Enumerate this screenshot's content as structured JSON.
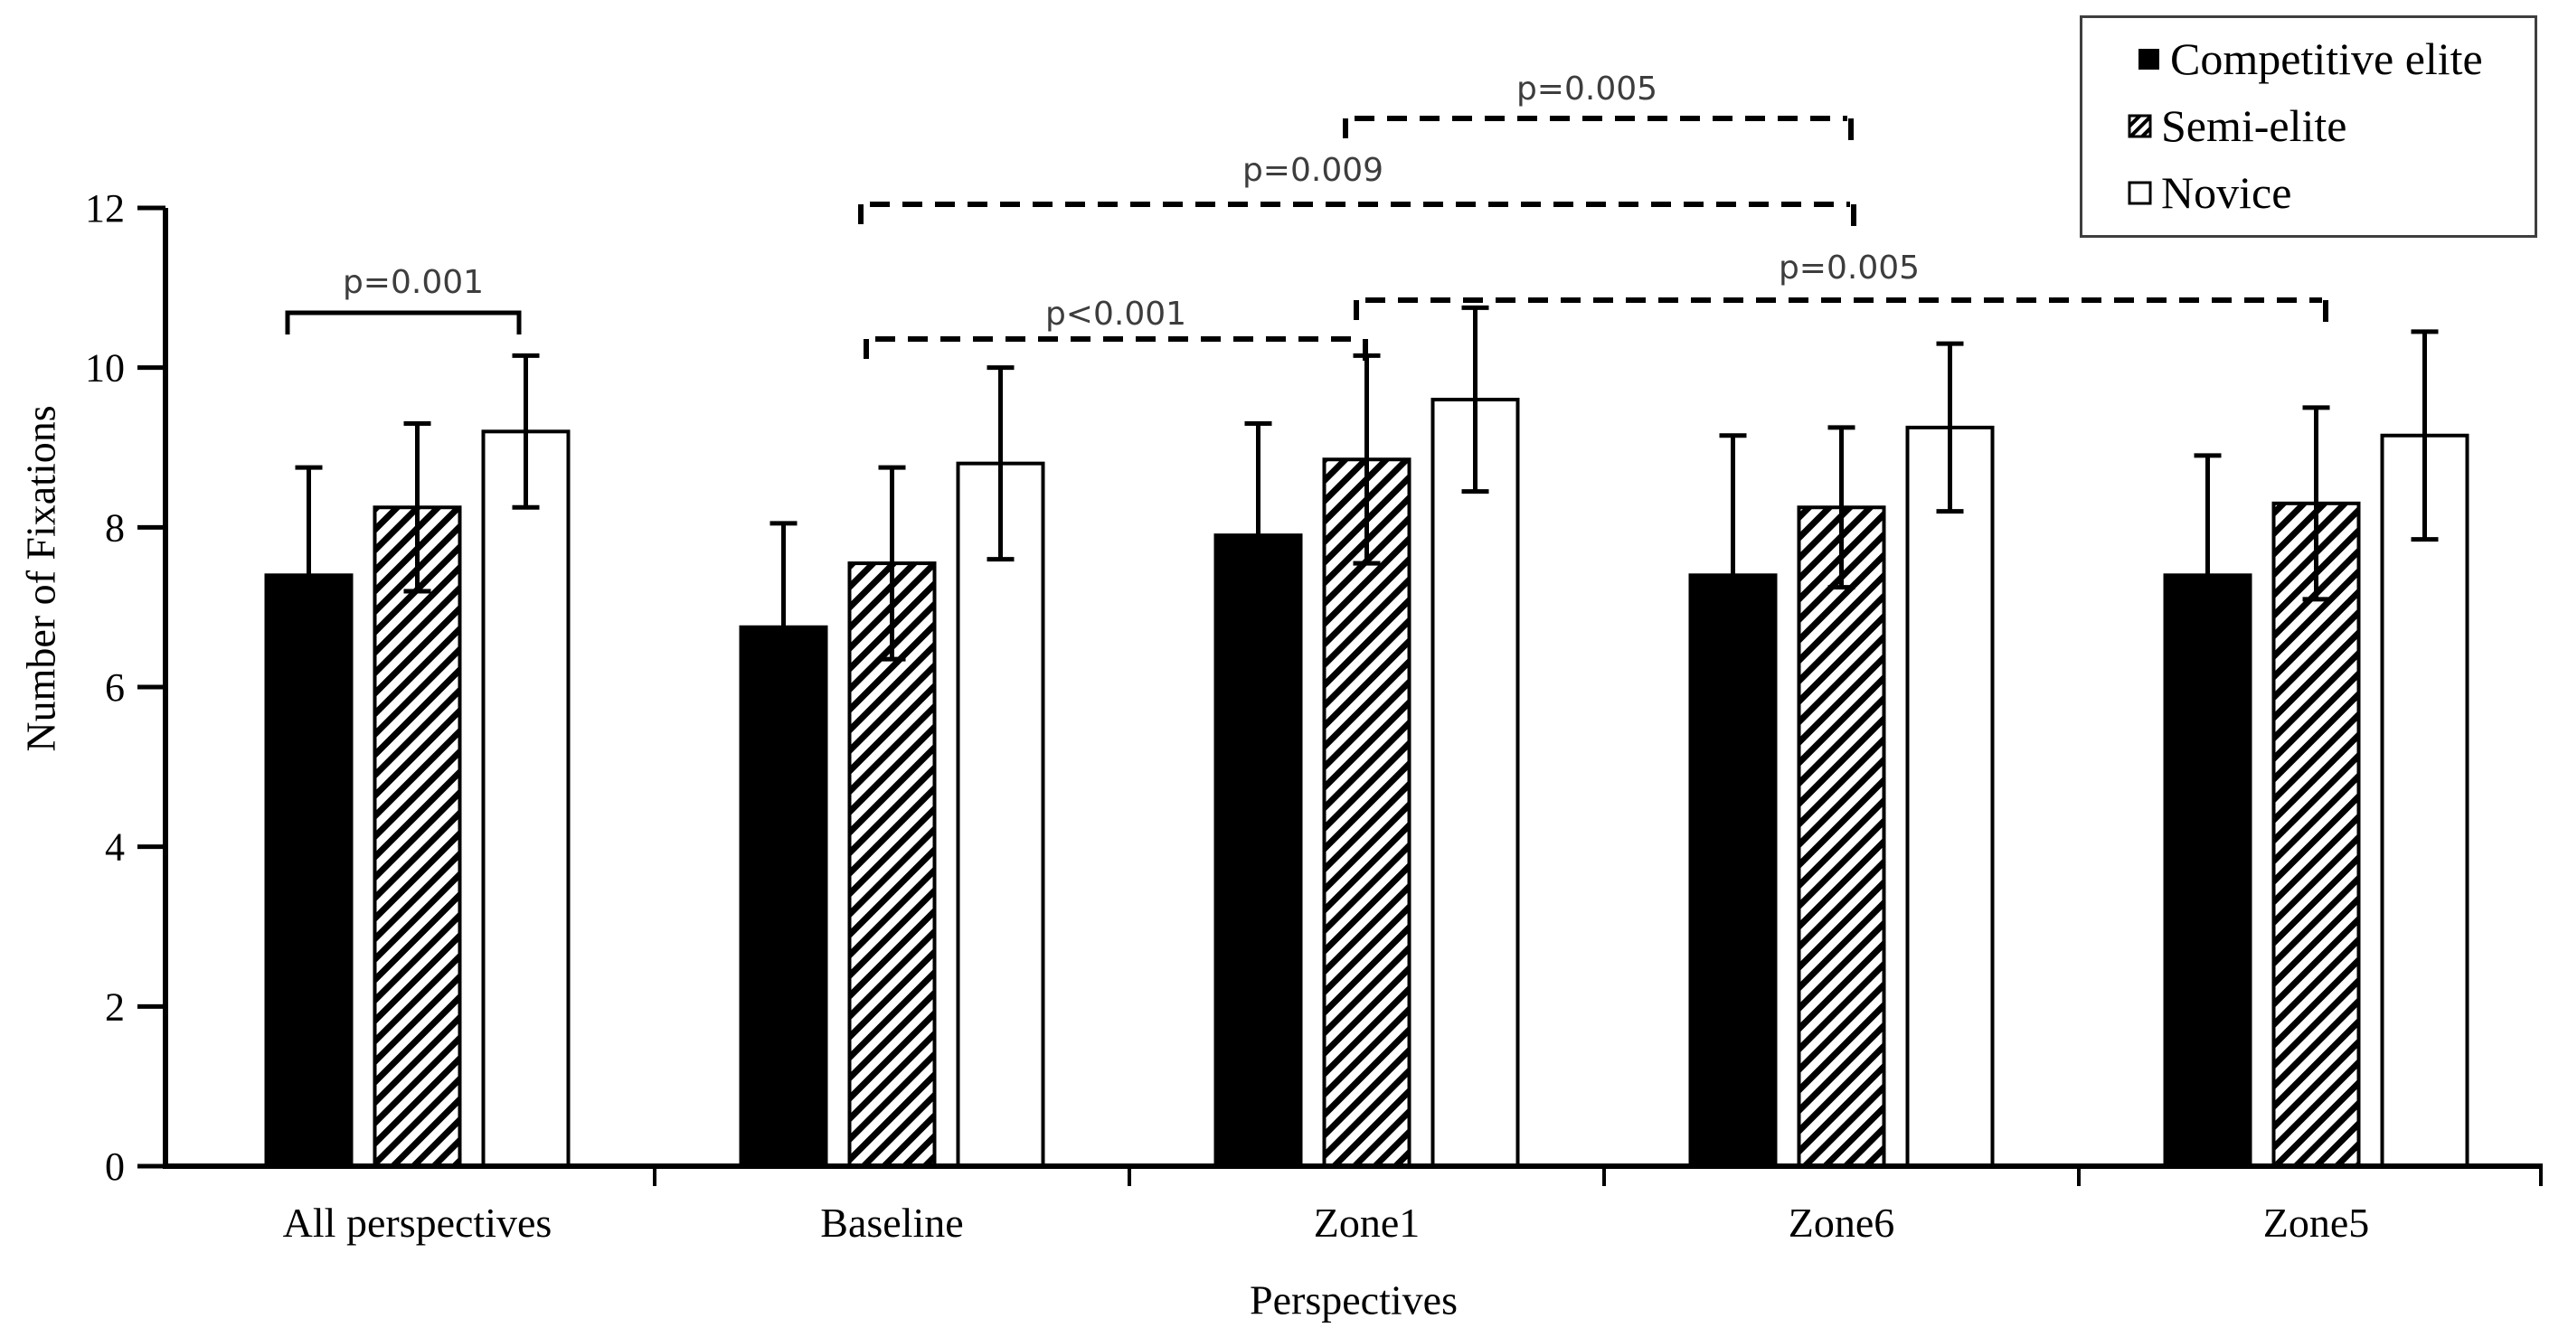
{
  "figure": {
    "background": "#ffffff",
    "axis_color": "#000000",
    "bar_fill_black": "#000000",
    "bar_fill_white": "#ffffff",
    "annotation_text_color": "#3d3d3d"
  },
  "chart_data": {
    "type": "bar",
    "title": "",
    "xlabel": "Perspectives",
    "ylabel": "Number of Fixations",
    "categories": [
      "All perspectives",
      "Baseline",
      "Zone1",
      "Zone6",
      "Zone5"
    ],
    "series": [
      {
        "name": "Competitive elite",
        "fill": "black",
        "values": [
          7.4,
          6.75,
          7.9,
          7.4,
          7.4
        ],
        "errors": [
          1.35,
          1.3,
          1.4,
          1.75,
          1.5
        ]
      },
      {
        "name": "Semi-elite",
        "fill": "hatch",
        "values": [
          8.25,
          7.55,
          8.85,
          8.25,
          8.3
        ],
        "errors": [
          1.05,
          1.2,
          1.3,
          1.0,
          1.2
        ]
      },
      {
        "name": "Novice",
        "fill": "white",
        "values": [
          9.2,
          8.8,
          9.6,
          9.25,
          9.15
        ],
        "errors": [
          0.95,
          1.2,
          1.15,
          1.05,
          1.3
        ]
      }
    ],
    "ylim": [
      0,
      12
    ],
    "yticks": [
      0,
      2,
      4,
      6,
      8,
      10,
      12
    ],
    "grid": false,
    "legend_position": "top-right",
    "error_bars": "symmetric",
    "annotations": [
      {
        "label": "p=0.001",
        "style": "solid",
        "x1": 318,
        "x2": 574,
        "y": 346,
        "label_x": 457,
        "label_y": 312
      },
      {
        "label": "p<0.001",
        "style": "dashed",
        "x1": 958,
        "x2": 1510,
        "y": 375,
        "label_x": 1234,
        "label_y": 347
      },
      {
        "label": "p=0.009",
        "style": "dashed",
        "x1": 952,
        "x2": 2050,
        "y": 226,
        "label_x": 1452,
        "label_y": 188
      },
      {
        "label": "p=0.005",
        "style": "dashed",
        "x1": 1488,
        "x2": 2047,
        "y": 131,
        "label_x": 1755,
        "label_y": 98
      },
      {
        "label": "p=0.005",
        "style": "dashed",
        "x1": 1500,
        "x2": 2572,
        "y": 332,
        "label_x": 2045,
        "label_y": 296
      }
    ]
  }
}
